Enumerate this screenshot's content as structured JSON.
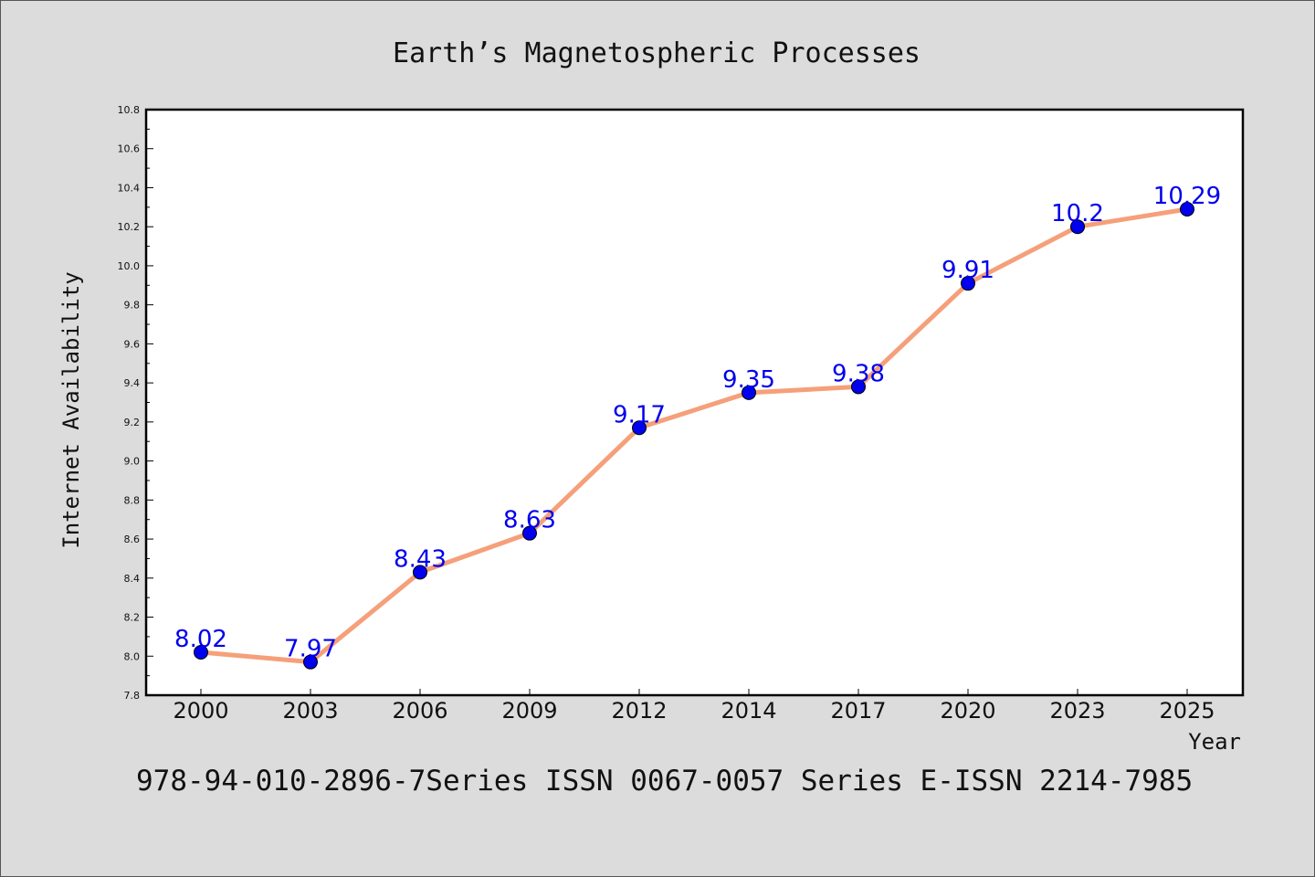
{
  "chart_data": {
    "type": "line",
    "title": "Earth’s Magnetospheric Processes",
    "xlabel": "Year",
    "ylabel": "Internet Availability",
    "categories": [
      "2000",
      "2003",
      "2006",
      "2009",
      "2012",
      "2014",
      "2017",
      "2020",
      "2023",
      "2025"
    ],
    "values": [
      8.02,
      7.97,
      8.43,
      8.63,
      9.17,
      9.35,
      9.38,
      9.91,
      10.2,
      10.29
    ],
    "data_labels": [
      "8.02",
      "7.97",
      "8.43",
      "8.63",
      "9.17",
      "9.35",
      "9.38",
      "9.91",
      "10.2",
      "10.29"
    ],
    "ylim": [
      7.8,
      10.8
    ],
    "yticks": [
      "7.8",
      "8.0",
      "8.2",
      "8.4",
      "8.6",
      "8.8",
      "9.0",
      "9.2",
      "9.4",
      "9.6",
      "9.8",
      "10.0",
      "10.2",
      "10.4",
      "10.6",
      "10.8"
    ],
    "grid": false,
    "legend": "none",
    "colors": {
      "line": "#f5a07a",
      "marker": "#0000ee",
      "label": "#0000ee",
      "background": "#dcdcdc",
      "plot_area": "#ffffff"
    }
  },
  "footer": "978-94-010-2896-7Series ISSN 0067-0057 Series E-ISSN 2214-7985"
}
